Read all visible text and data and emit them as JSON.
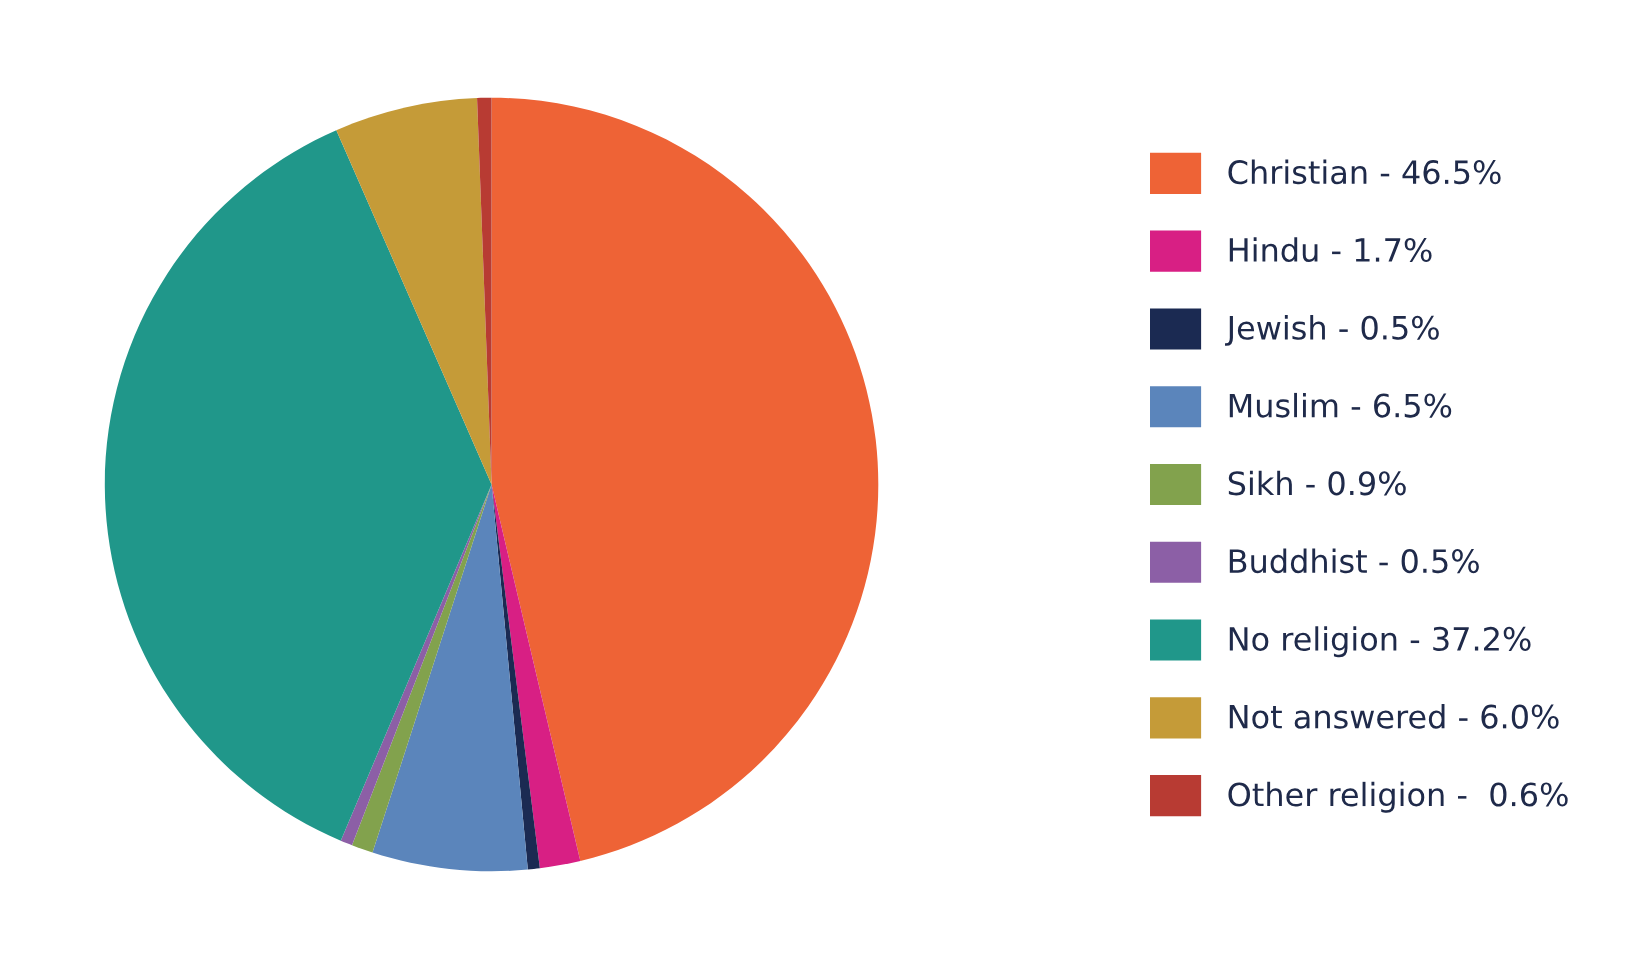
{
  "chart_data": {
    "type": "pie",
    "categories": [
      "Christian",
      "Hindu",
      "Jewish",
      "Muslim",
      "Sikh",
      "Buddhist",
      "No religion",
      "Not answered",
      "Other religion"
    ],
    "values": [
      46.5,
      1.7,
      0.5,
      6.5,
      0.9,
      0.5,
      37.2,
      6.0,
      0.6
    ],
    "value_labels": [
      "46.5%",
      "1.7%",
      "0.5%",
      "6.5%",
      "0.9%",
      "0.5%",
      "37.2%",
      "6.0%",
      " 0.6%"
    ],
    "colors": [
      "#ee6336",
      "#d81f84",
      "#1b2a52",
      "#5b85bb",
      "#82a24d",
      "#8c5fa6",
      "#20978a",
      "#c59b38",
      "#b83b33"
    ],
    "legend": "right"
  }
}
